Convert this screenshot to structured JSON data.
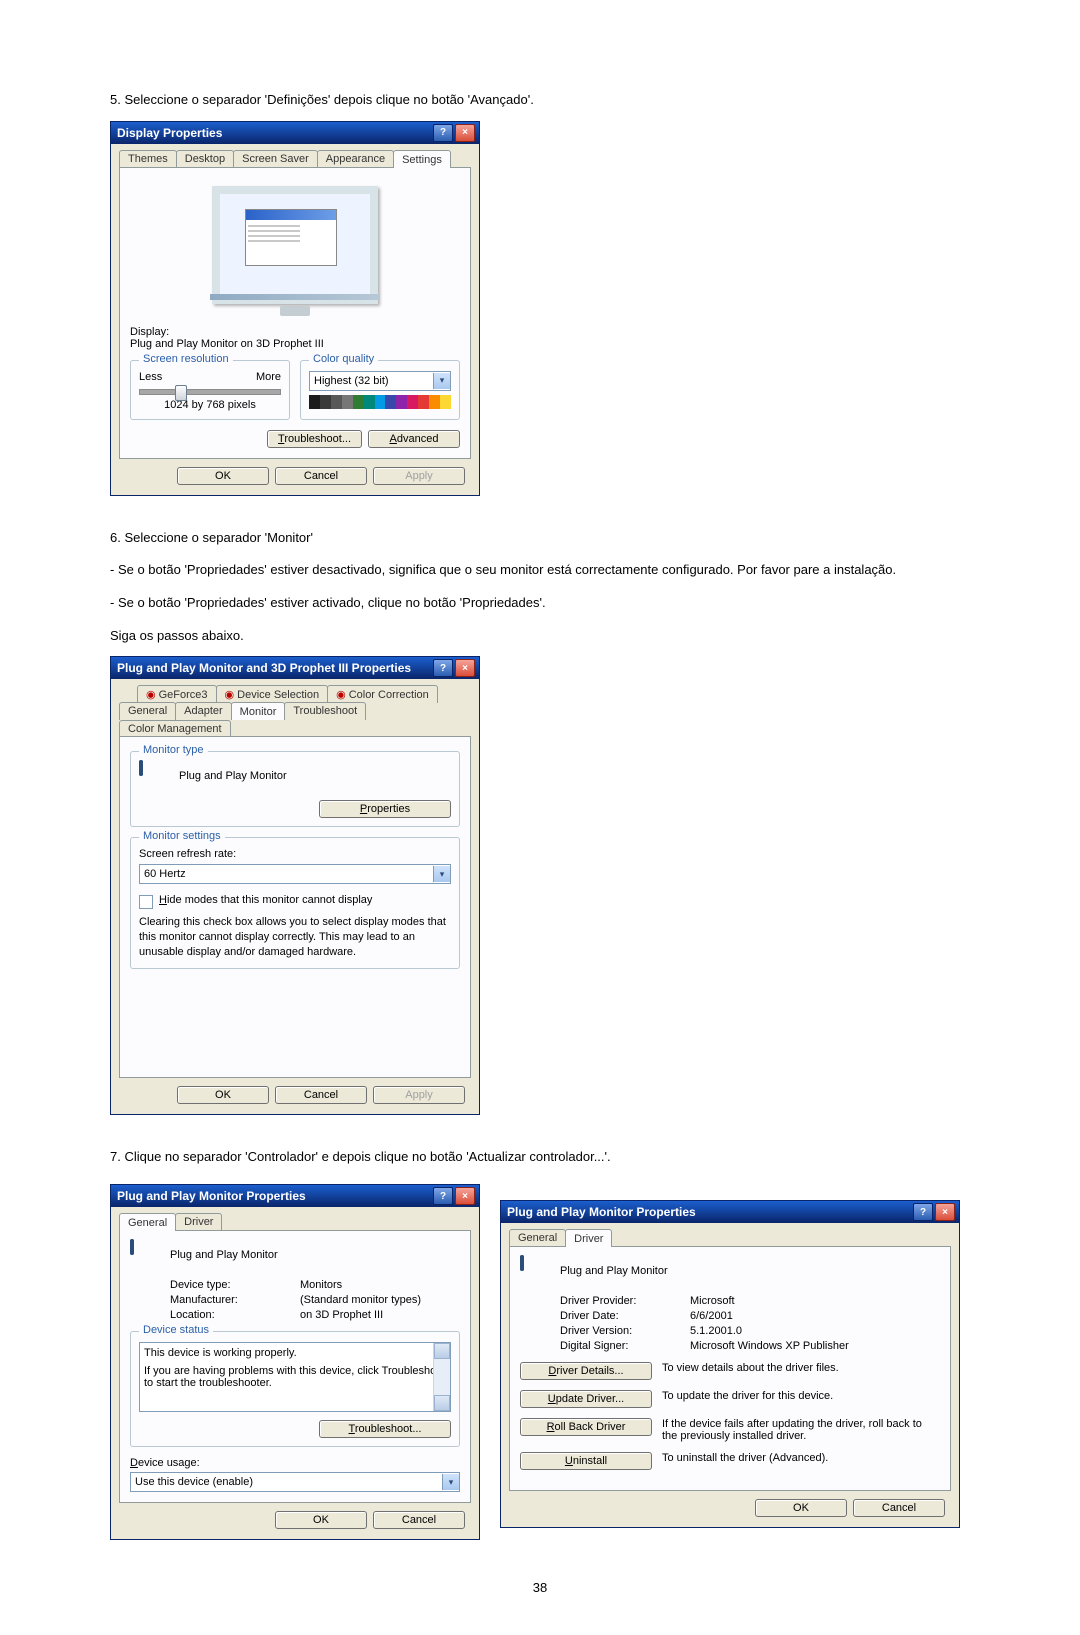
{
  "step5": "5. Seleccione o separador 'Definições' depois clique no botão 'Avançado'.",
  "step6": "6. Seleccione o separador 'Monitor'",
  "step6a": "- Se o botão 'Propriedades' estiver desactivado, significa que o seu monitor está correctamente configurado. Por favor pare a instalação.",
  "step6b": "- Se o botão 'Propriedades' estiver activado, clique no botão 'Propriedades'.",
  "step6c": "Siga os passos abaixo.",
  "step7": "7. Clique no separador 'Controlador' e depois clique no botão 'Actualizar controlador...'.",
  "page_number": "38",
  "colorbar": [
    "#1b1b1b",
    "#3a3a3a",
    "#585858",
    "#777",
    "#2e7d32",
    "#00897b",
    "#039be5",
    "#3949ab",
    "#8e24aa",
    "#d81b60",
    "#e53935",
    "#fb8c00",
    "#fdd835"
  ],
  "dlg1": {
    "title": "Display Properties",
    "tabs": [
      "Themes",
      "Desktop",
      "Screen Saver",
      "Appearance",
      "Settings"
    ],
    "active_tab": "Settings",
    "display_label": "Display:",
    "display_value": "Plug and Play Monitor on 3D Prophet III",
    "res_group": "Screen resolution",
    "less": "Less",
    "more": "More",
    "res_value": "1024 by 768 pixels",
    "color_group": "Color quality",
    "color_value": "Highest (32 bit)",
    "troubleshoot": "Troubleshoot...",
    "advanced": "Advanced",
    "ok": "OK",
    "cancel": "Cancel",
    "apply": "Apply"
  },
  "dlg2": {
    "title": "Plug and Play Monitor and 3D Prophet III Properties",
    "tabs_top": [
      "GeForce3",
      "Device Selection",
      "Color Correction"
    ],
    "tabs_bottom": [
      "General",
      "Adapter",
      "Monitor",
      "Troubleshoot",
      "Color Management"
    ],
    "active_tab": "Monitor",
    "monitor_type_legend": "Monitor type",
    "monitor_name": "Plug and Play Monitor",
    "properties": "Properties",
    "monitor_settings_legend": "Monitor settings",
    "refresh_label": "Screen refresh rate:",
    "refresh_value": "60 Hertz",
    "hide_modes": "Hide modes that this monitor cannot display",
    "hide_help": "Clearing this check box allows you to select display modes that this monitor cannot display correctly. This may lead to an unusable display and/or damaged hardware.",
    "ok": "OK",
    "cancel": "Cancel",
    "apply": "Apply"
  },
  "dlg3": {
    "title": "Plug and Play Monitor Properties",
    "tabs": [
      "General",
      "Driver"
    ],
    "active_tab": "General",
    "monitor_name": "Plug and Play Monitor",
    "device_type_label": "Device type:",
    "device_type_value": "Monitors",
    "manufacturer_label": "Manufacturer:",
    "manufacturer_value": "(Standard monitor types)",
    "location_label": "Location:",
    "location_value": "on 3D Prophet III",
    "device_status_legend": "Device status",
    "status_text": "This device is working properly.",
    "status_help": "If you are having problems with this device, click Troubleshoot to start the troubleshooter.",
    "troubleshoot": "Troubleshoot...",
    "usage_label": "Device usage:",
    "usage_value": "Use this device (enable)",
    "ok": "OK",
    "cancel": "Cancel"
  },
  "dlg4": {
    "title": "Plug and Play Monitor Properties",
    "tabs": [
      "General",
      "Driver"
    ],
    "active_tab": "Driver",
    "monitor_name": "Plug and Play Monitor",
    "provider_label": "Driver Provider:",
    "provider_value": "Microsoft",
    "date_label": "Driver Date:",
    "date_value": "6/6/2001",
    "version_label": "Driver Version:",
    "version_value": "5.1.2001.0",
    "signer_label": "Digital Signer:",
    "signer_value": "Microsoft Windows XP Publisher",
    "details_btn": "Driver Details...",
    "details_desc": "To view details about the driver files.",
    "update_btn": "Update Driver...",
    "update_desc": "To update the driver for this device.",
    "rollback_btn": "Roll Back Driver",
    "rollback_desc": "If the device fails after updating the driver, roll back to the previously installed driver.",
    "uninstall_btn": "Uninstall",
    "uninstall_desc": "To uninstall the driver (Advanced).",
    "ok": "OK",
    "cancel": "Cancel"
  }
}
